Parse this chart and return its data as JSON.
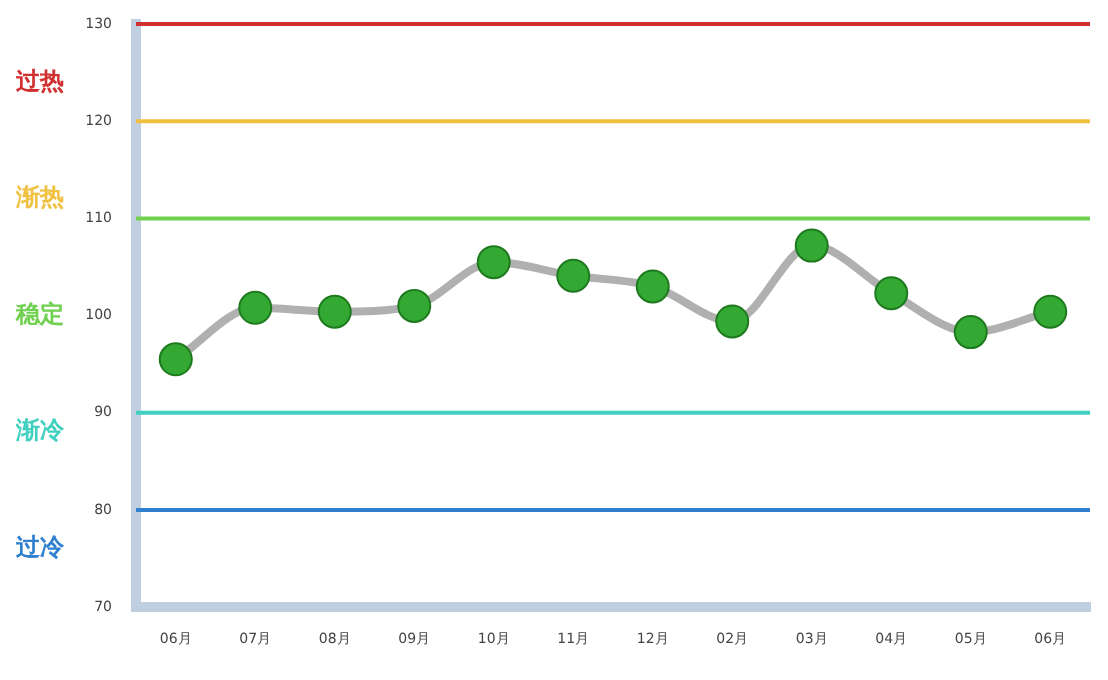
{
  "chart_data": {
    "type": "line",
    "categories": [
      "06月",
      "07月",
      "08月",
      "09月",
      "10月",
      "11月",
      "12月",
      "02月",
      "03月",
      "04月",
      "05月",
      "06月"
    ],
    "series": [
      {
        "color": "#33a833",
        "values": [
          95.5,
          100.8,
          100.4,
          101.0,
          105.5,
          104.1,
          103.0,
          99.4,
          107.2,
          102.3,
          98.3,
          100.4
        ]
      }
    ],
    "ylim": [
      70,
      130
    ],
    "yticks": [
      70,
      80,
      90,
      100,
      110,
      120,
      130
    ],
    "ref_lines": [
      {
        "axis": "y",
        "value": 130,
        "color": "#d03030"
      },
      {
        "axis": "y",
        "value": 120,
        "color": "#f0c040"
      },
      {
        "axis": "y",
        "value": 110,
        "color": "#70d050"
      },
      {
        "axis": "y",
        "value": 90,
        "color": "#40d0c0"
      },
      {
        "axis": "y",
        "value": 80,
        "color": "#3080d0"
      }
    ],
    "annotations": [
      "过热",
      "渐热",
      "稳定",
      "渐冷",
      "过冷"
    ],
    "marker": "circle",
    "line_style": "solid",
    "grid": false,
    "legend": false
  }
}
